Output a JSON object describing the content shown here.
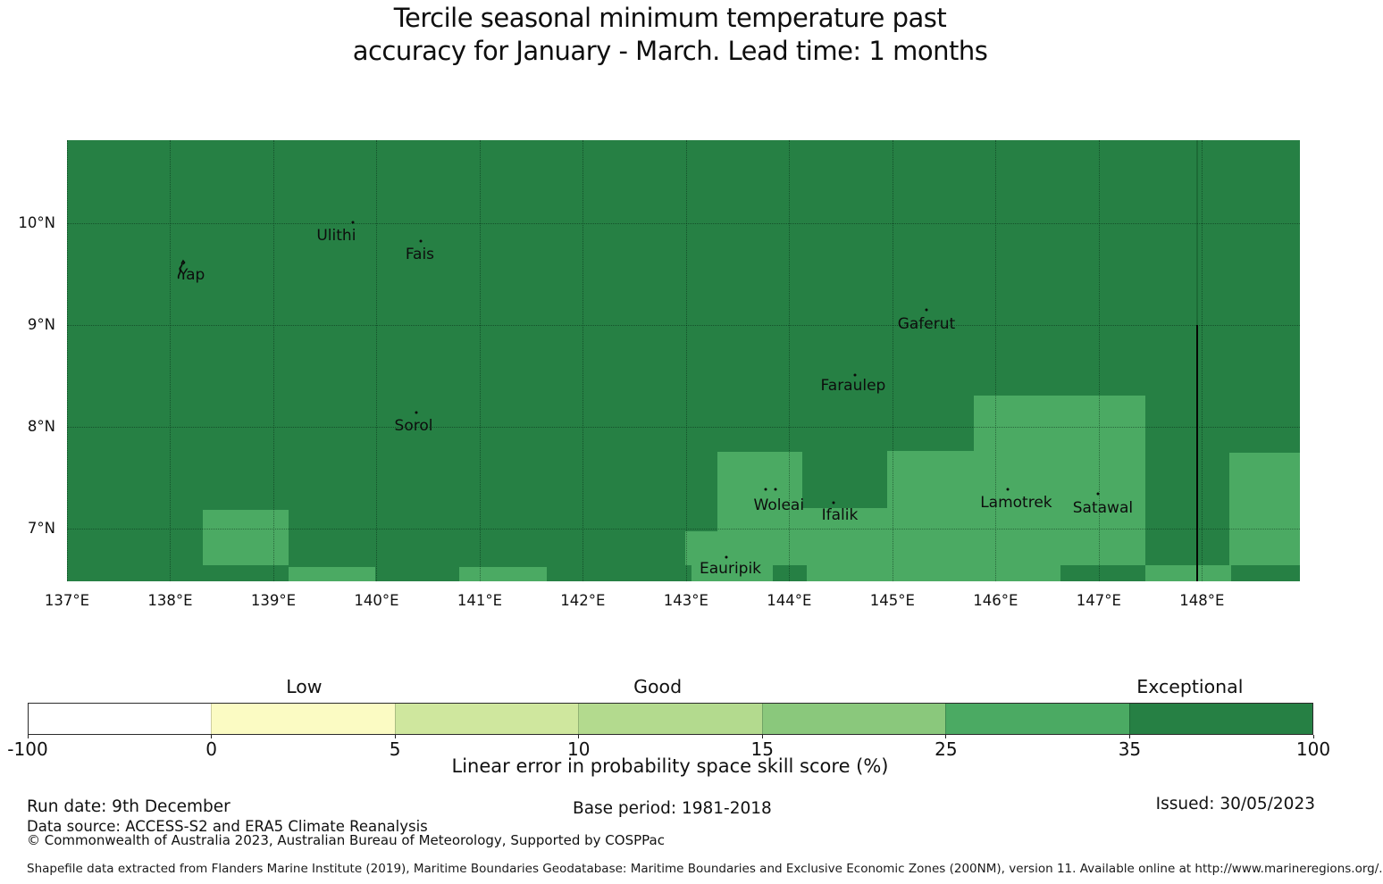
{
  "title": {
    "line1": "Tercile seasonal minimum temperature past",
    "line2": "accuracy for January - March. Lead time: 1 months"
  },
  "chart_data": {
    "type": "heatmap",
    "subtype": "geographic-skill-choropleth",
    "title": "Tercile seasonal minimum temperature past accuracy for January - March. Lead time: 1 months",
    "x_axis": {
      "range": [
        137,
        148.95
      ],
      "ticks": [
        137,
        138,
        139,
        140,
        141,
        142,
        143,
        144,
        145,
        146,
        147,
        148
      ],
      "tick_suffix": "°E"
    },
    "y_axis": {
      "range": [
        6.48,
        10.816
      ],
      "ticks": [
        7,
        8,
        9,
        10
      ],
      "tick_suffix": "°N"
    },
    "grid": true,
    "base_color": "#268044",
    "base_skill_class": "35-100",
    "patch_color": "#4baa63",
    "patch_skill_class": "25-35",
    "patches_lonlat": [
      [
        138.32,
        139.15,
        6.64,
        7.18
      ],
      [
        139.15,
        139.99,
        6.48,
        6.62
      ],
      [
        140.8,
        141.65,
        6.48,
        6.62
      ],
      [
        143.3,
        144.13,
        6.64,
        7.75
      ],
      [
        142.99,
        143.3,
        6.64,
        6.97
      ],
      [
        144.13,
        144.95,
        6.64,
        7.2
      ],
      [
        144.95,
        145.79,
        6.64,
        7.76
      ],
      [
        145.79,
        147.45,
        6.64,
        8.31
      ],
      [
        148.27,
        148.95,
        6.64,
        7.74
      ],
      [
        143.05,
        143.84,
        6.48,
        6.64
      ],
      [
        144.17,
        146.63,
        6.48,
        6.64
      ],
      [
        147.45,
        148.28,
        6.48,
        6.64
      ]
    ],
    "islands": [
      {
        "name": "Yap",
        "lon": 138.21,
        "lat": 9.49,
        "dots": [],
        "glyph": true
      },
      {
        "name": "Ulithi",
        "lon": 139.61,
        "lat": 9.88,
        "dots": [
          [
            139.77,
            10.01
          ]
        ]
      },
      {
        "name": "Fais",
        "lon": 140.42,
        "lat": 9.69,
        "dots": [
          [
            140.43,
            9.82
          ]
        ]
      },
      {
        "name": "Sorol",
        "lon": 140.36,
        "lat": 8.01,
        "dots": [
          [
            140.39,
            8.14
          ]
        ]
      },
      {
        "name": "Gaferut",
        "lon": 145.33,
        "lat": 9.01,
        "dots": [
          [
            145.33,
            9.15
          ]
        ]
      },
      {
        "name": "Faraulep",
        "lon": 144.62,
        "lat": 8.4,
        "dots": [
          [
            144.64,
            8.51
          ]
        ]
      },
      {
        "name": "Woleai",
        "lon": 143.9,
        "lat": 7.23,
        "dots": [
          [
            143.77,
            7.38
          ],
          [
            143.87,
            7.38
          ]
        ]
      },
      {
        "name": "Ifalik",
        "lon": 144.49,
        "lat": 7.13,
        "dots": [
          [
            144.43,
            7.25
          ]
        ]
      },
      {
        "name": "Lamotrek",
        "lon": 146.2,
        "lat": 7.25,
        "dots": [
          [
            146.12,
            7.38
          ]
        ]
      },
      {
        "name": "Satawal",
        "lon": 147.04,
        "lat": 7.2,
        "dots": [
          [
            146.99,
            7.34
          ]
        ]
      },
      {
        "name": "Eauripik",
        "lon": 143.43,
        "lat": 6.6,
        "dots": [
          [
            143.39,
            6.72
          ]
        ]
      }
    ],
    "eez_boundary_line": {
      "lon": 147.95,
      "lat_solid_top": 9.0,
      "color": "#050805"
    }
  },
  "colorbar": {
    "tick_labels": [
      "-100",
      "0",
      "5",
      "10",
      "15",
      "25",
      "35",
      "100"
    ],
    "segment_colors": [
      "#ffffff",
      "#fbfbc3",
      "#cfe79e",
      "#b3da8e",
      "#8ac87c",
      "#4baa63",
      "#268044"
    ],
    "categories": [
      {
        "label": "Low",
        "pos_pct": 21.5
      },
      {
        "label": "Good",
        "pos_pct": 49.0
      },
      {
        "label": "Exceptional",
        "pos_pct": 90.4
      }
    ],
    "axis_label": "Linear error in probability space skill score (%)"
  },
  "footer": {
    "run_date": "Run date: 9th December",
    "base_period": "Base period: 1981-2018",
    "issued": "Issued: 30/05/2023",
    "data_source": "Data source: ACCESS-S2 and ERA5 Climate Reanalysis",
    "copyright": "© Commonwealth of Australia 2023, Australian Bureau of Meteorology, Supported by COSPPac",
    "shapefile_note": "Shapefile data extracted from Flanders Marine Institute (2019), Maritime Boundaries Geodatabase: Maritime Boundaries and Exclusive Economic Zones (200NM), version 11. Available online at http://www.marineregions.org/."
  }
}
